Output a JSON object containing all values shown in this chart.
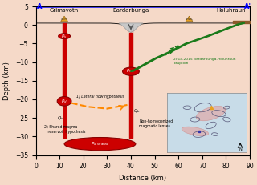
{
  "bg_color": "#f5d9c8",
  "xlim": [
    0,
    90
  ],
  "ylim": [
    -35,
    5
  ],
  "xlabel": "Distance (km)",
  "ylabel": "Depth (km)",
  "red_color": "#cc0000",
  "dark_red": "#880000",
  "orange_color": "#ff8800",
  "green_color": "#1a7a1a",
  "gold_color": "#e8a020",
  "caldera_fill": "#c8c8c8",
  "caldera_edge": "#999999"
}
